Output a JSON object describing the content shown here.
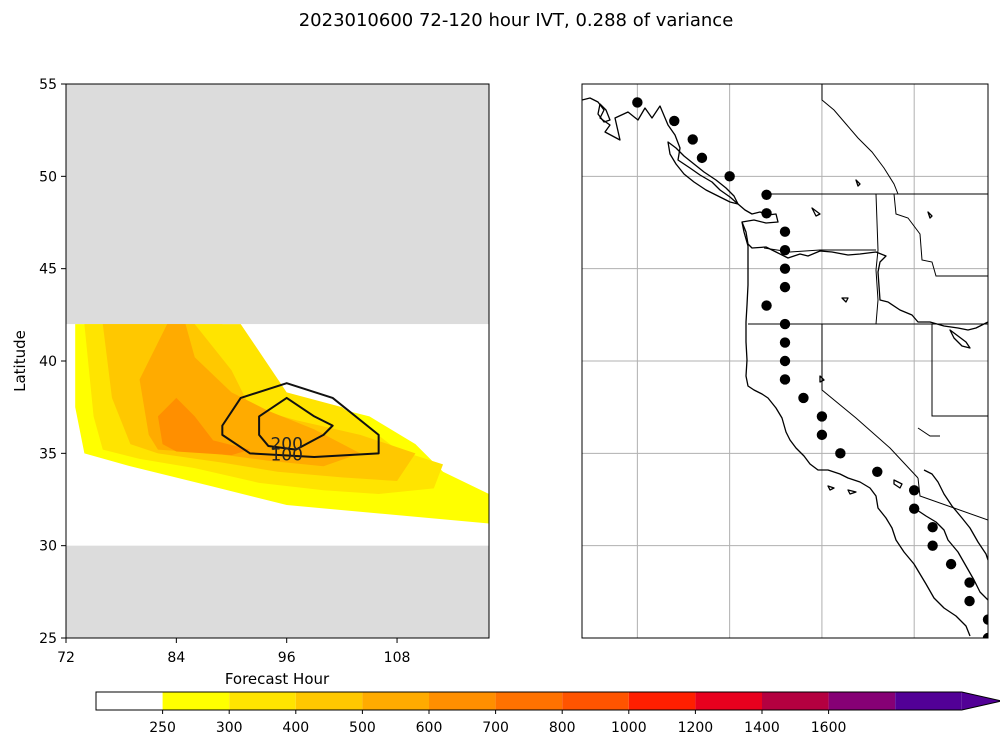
{
  "figure": {
    "title": "2023010600 72-120 hour IVT, 0.288 of variance"
  },
  "chart_data": [
    {
      "type": "contour",
      "panel": "left",
      "xlabel": "Forecast Hour",
      "ylabel": "Latitude",
      "xlim": [
        72,
        118
      ],
      "ylim": [
        25,
        55
      ],
      "xticks": [
        72,
        84,
        96,
        108
      ],
      "yticks": [
        25,
        30,
        35,
        40,
        45,
        50,
        55
      ],
      "grid": false,
      "masked_regions": [
        {
          "lat_min": 42,
          "lat_max": 55,
          "color": "#dcdcdc"
        },
        {
          "lat_min": 25,
          "lat_max": 30,
          "color": "#dcdcdc"
        }
      ],
      "filled_contours": [
        {
          "level": 250,
          "color": "#ffff00",
          "points": [
            [
              73.0,
              42
            ],
            [
              80,
              42
            ],
            [
              89,
              42
            ],
            [
              93,
              38.5
            ],
            [
              105,
              37
            ],
            [
              110,
              35.5
            ],
            [
              113,
              34
            ],
            [
              118,
              32.8
            ],
            [
              118,
              31.2
            ],
            [
              107,
              31.7
            ],
            [
              96,
              32.2
            ],
            [
              88,
              33.2
            ],
            [
              79,
              34.3
            ],
            [
              74,
              35
            ],
            [
              73,
              37.5
            ]
          ]
        },
        {
          "level": 300,
          "color": "#ffe400",
          "points": [
            [
              74,
              42
            ],
            [
              80,
              42
            ],
            [
              91,
              42
            ],
            [
              96,
              38.3
            ],
            [
              102,
              37.5
            ],
            [
              108,
              35.2
            ],
            [
              113,
              34.4
            ],
            [
              112,
              33.1
            ],
            [
              106,
              32.8
            ],
            [
              100,
              33
            ],
            [
              93,
              33.4
            ],
            [
              86,
              34.2
            ],
            [
              80,
              34.7
            ],
            [
              76,
              35.2
            ],
            [
              75,
              37
            ]
          ]
        },
        {
          "level": 400,
          "color": "#ffc800",
          "points": [
            [
              76,
              42
            ],
            [
              86,
              42
            ],
            [
              90,
              39.5
            ],
            [
              92,
              37.5
            ],
            [
              97,
              36.8
            ],
            [
              104,
              36
            ],
            [
              110,
              35
            ],
            [
              108,
              33.5
            ],
            [
              102,
              33.7
            ],
            [
              95,
              34
            ],
            [
              89,
              34.5
            ],
            [
              82,
              35
            ],
            [
              79,
              35.5
            ],
            [
              77,
              38
            ]
          ]
        },
        {
          "level": 500,
          "color": "#ffab00",
          "points": [
            [
              80,
              39
            ],
            [
              83,
              42
            ],
            [
              85,
              42
            ],
            [
              86,
              40.2
            ],
            [
              90,
              38.3
            ],
            [
              94,
              37.3
            ],
            [
              99,
              36.3
            ],
            [
              104,
              35
            ],
            [
              100,
              34.3
            ],
            [
              94,
              34.6
            ],
            [
              88,
              35
            ],
            [
              82,
              35.2
            ],
            [
              81,
              36
            ]
          ]
        },
        {
          "level": 600,
          "color": "#ff8f00",
          "points": [
            [
              82,
              37
            ],
            [
              84,
              38
            ],
            [
              86,
              37
            ],
            [
              88,
              35.7
            ],
            [
              92,
              35.2
            ],
            [
              90,
              34.9
            ],
            [
              84,
              35.1
            ],
            [
              82.5,
              35.5
            ]
          ]
        }
      ],
      "line_contours": [
        {
          "level": 100,
          "label": "100",
          "points": [
            [
              89,
              36.5
            ],
            [
              91,
              38
            ],
            [
              96,
              38.8
            ],
            [
              101,
              38
            ],
            [
              106,
              36
            ],
            [
              106,
              35
            ],
            [
              99,
              34.8
            ],
            [
              92,
              35
            ],
            [
              89,
              36
            ]
          ]
        },
        {
          "level": 200,
          "label": "200",
          "points": [
            [
              93,
              36
            ],
            [
              93,
              37
            ],
            [
              96,
              38
            ],
            [
              99,
              37
            ],
            [
              101,
              36.5
            ],
            [
              100,
              36
            ],
            [
              97,
              35.2
            ],
            [
              94,
              35.4
            ]
          ]
        }
      ]
    },
    {
      "type": "map",
      "panel": "right",
      "lon_range": [
        -135,
        -113
      ],
      "lat_range": [
        25,
        55
      ],
      "grid": true,
      "gridlines_lon": [
        -132,
        -127,
        -122,
        -117
      ],
      "gridlines_lat": [
        30,
        35,
        40,
        45,
        50
      ],
      "points": [
        [
          -132,
          54
        ],
        [
          -130,
          53
        ],
        [
          -129,
          52
        ],
        [
          -128.5,
          51
        ],
        [
          -127,
          50
        ],
        [
          -125,
          49
        ],
        [
          -125,
          48
        ],
        [
          -124,
          47
        ],
        [
          -124,
          46
        ],
        [
          -124,
          45
        ],
        [
          -124,
          44
        ],
        [
          -125,
          43
        ],
        [
          -124,
          42
        ],
        [
          -124,
          41
        ],
        [
          -124,
          40
        ],
        [
          -124,
          39
        ],
        [
          -123,
          38
        ],
        [
          -122,
          37
        ],
        [
          -122,
          36
        ],
        [
          -121,
          35
        ],
        [
          -119,
          34
        ],
        [
          -117,
          33
        ],
        [
          -117,
          32
        ],
        [
          -116,
          31
        ],
        [
          -116,
          30
        ],
        [
          -115,
          29
        ],
        [
          -114,
          28
        ],
        [
          -114,
          27
        ],
        [
          -113,
          26
        ],
        [
          -113,
          25
        ]
      ]
    }
  ],
  "colorbar": {
    "tick_labels": [
      "250",
      "300",
      "400",
      "500",
      "600",
      "700",
      "800",
      "1000",
      "1200",
      "1400",
      "1600"
    ],
    "colors": [
      "#ffffff",
      "#ffff00",
      "#ffe400",
      "#ffc800",
      "#ffab00",
      "#ff8f00",
      "#ff7200",
      "#ff5400",
      "#ff1f00",
      "#e8001e",
      "#b40040",
      "#860075",
      "#520096"
    ],
    "extend": "max"
  }
}
